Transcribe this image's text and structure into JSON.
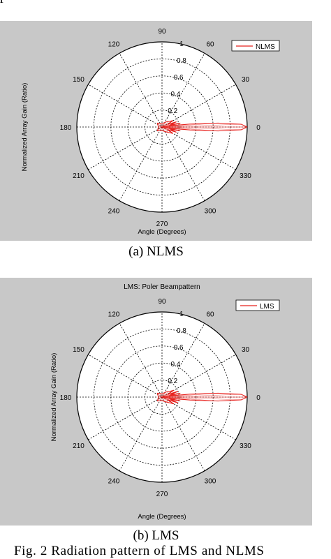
{
  "top_fragment": "p",
  "figure_caption": "Fig. 2 Radiation pattern of LMS and NLMS",
  "chart_data": [
    {
      "type": "polar",
      "panel_caption": "(a)  NLMS",
      "title": "",
      "xlabel": "Angle (Degrees)",
      "ylabel": "Normalized Array Gain (Ratio)",
      "angle_ticks": [
        "90",
        "60",
        "30",
        "0",
        "330",
        "300",
        "270",
        "240",
        "210",
        "180",
        "150",
        "120"
      ],
      "radial_ticks": [
        "0.2",
        "0.4",
        "0.6",
        "0.8",
        "1"
      ],
      "rmax": 1,
      "grid": true,
      "legend": {
        "position": "top-right",
        "entries": [
          "NLMS"
        ]
      },
      "series": [
        {
          "name": "NLMS",
          "color": "#e8201c",
          "theta_deg": [
            0,
            2,
            4,
            6,
            8,
            10,
            12,
            15,
            20,
            25,
            30,
            40,
            50,
            60,
            90,
            120,
            140,
            160,
            180,
            200,
            220,
            240,
            270,
            300,
            320,
            330,
            335,
            340,
            345,
            348,
            350,
            352,
            354,
            356,
            358,
            360
          ],
          "r": [
            1.0,
            0.93,
            0.66,
            0.33,
            0.12,
            0.08,
            0.22,
            0.1,
            0.18,
            0.07,
            0.15,
            0.1,
            0.08,
            0.06,
            0.04,
            0.05,
            0.07,
            0.05,
            0.04,
            0.05,
            0.07,
            0.05,
            0.04,
            0.06,
            0.1,
            0.15,
            0.07,
            0.18,
            0.1,
            0.22,
            0.08,
            0.12,
            0.33,
            0.66,
            0.93,
            1.0
          ]
        }
      ]
    },
    {
      "type": "polar",
      "panel_caption": "(b) LMS",
      "title": "LMS: Poler Beampattern",
      "xlabel": "Angle (Degrees)",
      "ylabel": "Normalized Array Gain (Ratio)",
      "angle_ticks": [
        "90",
        "60",
        "30",
        "0",
        "330",
        "300",
        "270",
        "240",
        "210",
        "180",
        "150",
        "120"
      ],
      "radial_ticks": [
        "0.2",
        "0.4",
        "0.6",
        "0.8",
        "1"
      ],
      "rmax": 1,
      "grid": true,
      "legend": {
        "position": "top-right",
        "entries": [
          "LMS"
        ]
      },
      "series": [
        {
          "name": "LMS",
          "color": "#e8201c",
          "theta_deg": [
            0,
            2,
            4,
            6,
            8,
            10,
            12,
            15,
            20,
            25,
            30,
            40,
            50,
            60,
            90,
            120,
            140,
            160,
            180,
            200,
            220,
            240,
            270,
            300,
            320,
            330,
            335,
            340,
            345,
            348,
            350,
            352,
            354,
            356,
            358,
            360
          ],
          "r": [
            1.0,
            0.93,
            0.66,
            0.33,
            0.12,
            0.08,
            0.22,
            0.1,
            0.2,
            0.07,
            0.16,
            0.1,
            0.08,
            0.06,
            0.04,
            0.05,
            0.07,
            0.05,
            0.04,
            0.05,
            0.07,
            0.05,
            0.04,
            0.06,
            0.1,
            0.16,
            0.07,
            0.2,
            0.1,
            0.22,
            0.08,
            0.12,
            0.33,
            0.66,
            0.93,
            1.0
          ]
        }
      ]
    }
  ]
}
